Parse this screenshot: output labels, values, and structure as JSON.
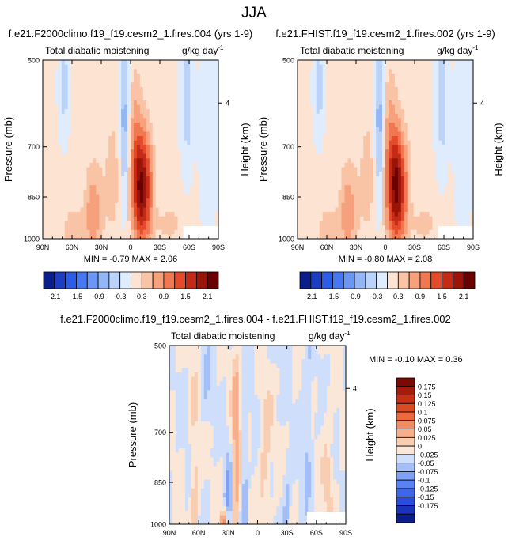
{
  "figure": {
    "title": "JJA"
  },
  "colors": {
    "top_levels": [
      -2.1,
      -1.8,
      -1.5,
      -1.2,
      -0.9,
      -0.6,
      -0.3,
      0,
      0.3,
      0.6,
      0.9,
      1.2,
      1.5,
      1.8,
      2.1
    ],
    "top_fills": [
      "#0a1f8c",
      "#1c3ec2",
      "#2d5ce6",
      "#4778f2",
      "#6b96f5",
      "#93b6f7",
      "#bcd3f9",
      "#dfecfd",
      "#fde3d2",
      "#f9c3a6",
      "#f6a07c",
      "#f07850",
      "#e34b2a",
      "#c42a15",
      "#9a1408",
      "#6b0000"
    ],
    "diff_fills": [
      "#0a1f8c",
      "#1a33b8",
      "#2a4cdc",
      "#3c66ec",
      "#5982f2",
      "#7ea1f5",
      "#a4bff8",
      "#cfdffb",
      "#fbe7d8",
      "#f8cdb2",
      "#f6ae8b",
      "#f28c63",
      "#ec6a3d",
      "#dd4a22",
      "#c43114",
      "#a41c0a",
      "#7d0a02"
    ]
  },
  "chart_data": [
    {
      "type": "heatmap",
      "title": "f.e21.F2000climo.f19_f19.cesm2_1.fires.004 (yrs 1-9)",
      "subtitle_left": "Total diabatic moistening",
      "units_base": "g/kg day",
      "units_exp": "-1",
      "ylabel": "Pressure (mb)",
      "ylabel_right": "Height (km)",
      "xticks": [
        "90N",
        "60N",
        "30N",
        "0",
        "30S",
        "60S",
        "90S"
      ],
      "yticks": [
        "500",
        "700",
        "850",
        "1000"
      ],
      "yticks_right": [
        "4"
      ],
      "stats": "MIN = -0.79  MAX =  2.06",
      "colorbar_labels": [
        "-2.1",
        "-1.5",
        "-0.9",
        "-0.3",
        "0.3",
        "0.9",
        "1.5",
        "2.1"
      ],
      "min": -0.79,
      "max": 2.06
    },
    {
      "type": "heatmap",
      "title": "f.e21.FHIST.f19_f19.cesm2_1.fires.002 (yrs 1-9)",
      "subtitle_left": "Total diabatic moistening",
      "units_base": "g/kg day",
      "units_exp": "-1",
      "ylabel": "Pressure (mb)",
      "ylabel_right": "Height (km)",
      "xticks": [
        "90N",
        "60N",
        "30N",
        "0",
        "30S",
        "60S",
        "90S"
      ],
      "yticks": [
        "500",
        "700",
        "850",
        "1000"
      ],
      "yticks_right": [
        "4"
      ],
      "stats": "MIN = -0.80  MAX =  2.08",
      "colorbar_labels": [
        "-2.1",
        "-1.5",
        "-0.9",
        "-0.3",
        "0.3",
        "0.9",
        "1.5",
        "2.1"
      ],
      "min": -0.8,
      "max": 2.08
    },
    {
      "type": "heatmap",
      "title": "f.e21.F2000climo.f19_f19.cesm2_1.fires.004 - f.e21.FHIST.f19_f19.cesm2_1.fires.002",
      "subtitle_left": "Total diabatic moistening",
      "units_base": "g/kg day",
      "units_exp": "-1",
      "ylabel": "Pressure (mb)",
      "ylabel_right": "Height (km)",
      "xticks": [
        "90N",
        "60N",
        "30N",
        "0",
        "30S",
        "60S",
        "90S"
      ],
      "yticks": [
        "500",
        "700",
        "850",
        "1000"
      ],
      "yticks_right": [
        "4"
      ],
      "stats": "MIN = -0.10  MAX =  0.36",
      "colorbar_labels": [
        "0.175",
        "0.15",
        "0.125",
        "0.1",
        "0.075",
        "0.05",
        "0.025",
        "0",
        "-0.025",
        "-0.05",
        "-0.075",
        "-0.1",
        "-0.125",
        "-0.15",
        "-0.175"
      ],
      "min": -0.1,
      "max": 0.36
    }
  ]
}
